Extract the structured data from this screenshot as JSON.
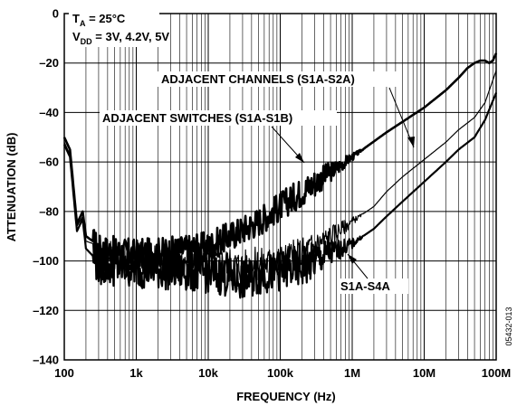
{
  "chart_data": {
    "type": "line",
    "xlabel": "FREQUENCY (Hz)",
    "ylabel": "ATTENUATION (dB)",
    "x_scale": "log",
    "xlim": [
      100,
      100000000
    ],
    "ylim": [
      -140,
      0
    ],
    "x_ticks": [
      {
        "value": 100,
        "label": "100"
      },
      {
        "value": 1000,
        "label": "1k"
      },
      {
        "value": 10000,
        "label": "10k"
      },
      {
        "value": 100000,
        "label": "100k"
      },
      {
        "value": 1000000,
        "label": "1M"
      },
      {
        "value": 10000000,
        "label": "10M"
      },
      {
        "value": 100000000,
        "label": "100M"
      }
    ],
    "y_ticks": [
      0,
      -20,
      -40,
      -60,
      -80,
      -100,
      -120,
      -140
    ],
    "y_tick_labels": [
      "0",
      "–20",
      "–40",
      "–60",
      "–80",
      "–100",
      "–120",
      "–140"
    ],
    "grid": true,
    "conditions": {
      "line1_main": "T",
      "line1_sub": "A",
      "line1_rest": " = 25°C",
      "line2_main": "V",
      "line2_sub": "DD",
      "line2_rest": " = 3V, 4.2V, 5V"
    },
    "figure_code": "05432-013",
    "annotations": [
      "ADJACENT CHANNELS (S1A-S2A)",
      "ADJACENT SWITCHES (S1A-S1B)",
      "S1A-S4A"
    ],
    "series": [
      {
        "name": "ADJACENT SWITCHES (S1A-S1B)",
        "points": [
          [
            100,
            -50
          ],
          [
            120,
            -55
          ],
          [
            150,
            -85
          ],
          [
            180,
            -80
          ],
          [
            200,
            -90
          ],
          [
            250,
            -92
          ],
          [
            300,
            -95
          ],
          [
            500,
            -96
          ],
          [
            1000,
            -97
          ],
          [
            3000,
            -96
          ],
          [
            10000,
            -94
          ],
          [
            20000,
            -90
          ],
          [
            50000,
            -84
          ],
          [
            100000,
            -78
          ],
          [
            200000,
            -72
          ],
          [
            500000,
            -64
          ],
          [
            1000000,
            -58
          ],
          [
            3000000,
            -48
          ],
          [
            10000000,
            -38
          ],
          [
            20000000,
            -31
          ],
          [
            30000000,
            -26
          ],
          [
            40000000,
            -22
          ],
          [
            50000000,
            -20
          ],
          [
            60000000,
            -19
          ],
          [
            70000000,
            -19
          ],
          [
            80000000,
            -20
          ],
          [
            90000000,
            -19
          ],
          [
            100000000,
            -16
          ]
        ]
      },
      {
        "name": "ADJACENT CHANNELS (S1A-S2A)",
        "points": [
          [
            100,
            -52
          ],
          [
            120,
            -57
          ],
          [
            150,
            -86
          ],
          [
            180,
            -82
          ],
          [
            200,
            -92
          ],
          [
            250,
            -93
          ],
          [
            300,
            -98
          ],
          [
            1000,
            -100
          ],
          [
            10000,
            -100
          ],
          [
            30000,
            -102
          ],
          [
            100000,
            -100
          ],
          [
            200000,
            -97
          ],
          [
            300000,
            -94
          ],
          [
            500000,
            -90
          ],
          [
            1000000,
            -84
          ],
          [
            2000000,
            -78
          ],
          [
            3000000,
            -72
          ],
          [
            5000000,
            -66
          ],
          [
            10000000,
            -59
          ],
          [
            20000000,
            -52
          ],
          [
            30000000,
            -47
          ],
          [
            50000000,
            -42
          ],
          [
            70000000,
            -36
          ],
          [
            100000000,
            -23
          ]
        ]
      },
      {
        "name": "S1A-S4A",
        "points": [
          [
            100,
            -53
          ],
          [
            120,
            -58
          ],
          [
            150,
            -88
          ],
          [
            180,
            -83
          ],
          [
            200,
            -95
          ],
          [
            250,
            -98
          ],
          [
            300,
            -102
          ],
          [
            1000,
            -103
          ],
          [
            10000,
            -105
          ],
          [
            30000,
            -108
          ],
          [
            50000,
            -106
          ],
          [
            100000,
            -104
          ],
          [
            200000,
            -103
          ],
          [
            300000,
            -100
          ],
          [
            500000,
            -97
          ],
          [
            1000000,
            -93
          ],
          [
            2000000,
            -87
          ],
          [
            3000000,
            -82
          ],
          [
            5000000,
            -76
          ],
          [
            10000000,
            -68
          ],
          [
            20000000,
            -60
          ],
          [
            30000000,
            -55
          ],
          [
            50000000,
            -50
          ],
          [
            70000000,
            -43
          ],
          [
            100000000,
            -32
          ]
        ]
      }
    ]
  }
}
